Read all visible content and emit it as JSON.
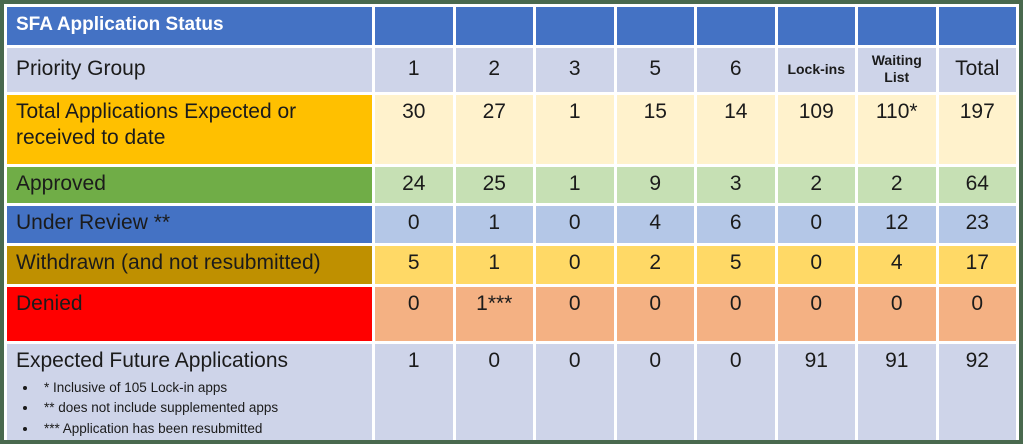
{
  "title": "SFA Application Status",
  "header": {
    "label": "Priority Group",
    "columns": [
      "1",
      "2",
      "3",
      "5",
      "6",
      "Lock-ins",
      "Waiting List",
      "Total"
    ]
  },
  "rows": [
    {
      "label": "Total Applications Expected or received to date",
      "values": [
        "30",
        "27",
        "1",
        "15",
        "14",
        "109",
        "110*",
        "197"
      ]
    },
    {
      "label": "Approved",
      "values": [
        "24",
        "25",
        "1",
        "9",
        "3",
        "2",
        "2",
        "64"
      ]
    },
    {
      "label": "Under Review **",
      "values": [
        "0",
        "1",
        "0",
        "4",
        "6",
        "0",
        "12",
        "23"
      ]
    },
    {
      "label": "Withdrawn (and not resubmitted)",
      "values": [
        "5",
        "1",
        "0",
        "2",
        "5",
        "0",
        "4",
        "17"
      ]
    },
    {
      "label": "Denied",
      "values": [
        "0",
        "1***",
        "0",
        "0",
        "0",
        "0",
        "0",
        "0"
      ]
    },
    {
      "label": "Expected Future Applications",
      "values": [
        "1",
        "0",
        "0",
        "0",
        "0",
        "91",
        "91",
        "92"
      ]
    }
  ],
  "footnotes": [
    "* Inclusive of 105 Lock-in apps",
    "** does not include supplemented apps",
    "*** Application has been resubmitted"
  ],
  "colors": {
    "frame_border": "#49694e",
    "title_blue": "#4472c4",
    "header_lavender": "#ced4e9",
    "total_label_gold": "#ffc000",
    "total_data_cream": "#fff2cc",
    "approved_label_green": "#70ad47",
    "approved_data_green": "#c6e0b4",
    "review_label_blue": "#4472c4",
    "review_data_blue": "#b4c7e7",
    "withdrawn_label_darkgold": "#bf9000",
    "withdrawn_data_yellow": "#ffd966",
    "denied_label_red": "#ff0000",
    "denied_data_peach": "#f4b183",
    "future_lavender": "#ced4e9"
  },
  "chart_data": {
    "type": "table",
    "title": "SFA Application Status",
    "columns": [
      "Priority Group",
      "1",
      "2",
      "3",
      "5",
      "6",
      "Lock-ins",
      "Waiting List",
      "Total"
    ],
    "rows": [
      [
        "Total Applications Expected or received to date",
        30,
        27,
        1,
        15,
        14,
        109,
        "110*",
        197
      ],
      [
        "Approved",
        24,
        25,
        1,
        9,
        3,
        2,
        2,
        64
      ],
      [
        "Under Review **",
        0,
        1,
        0,
        4,
        6,
        0,
        12,
        23
      ],
      [
        "Withdrawn (and not resubmitted)",
        5,
        1,
        0,
        2,
        5,
        0,
        4,
        17
      ],
      [
        "Denied",
        0,
        "1***",
        0,
        0,
        0,
        0,
        0,
        0
      ],
      [
        "Expected Future Applications",
        1,
        0,
        0,
        0,
        0,
        91,
        91,
        92
      ]
    ],
    "annotations": [
      "* Inclusive of 105 Lock-in apps",
      "** does not include supplemented apps",
      "*** Application has been resubmitted"
    ]
  }
}
